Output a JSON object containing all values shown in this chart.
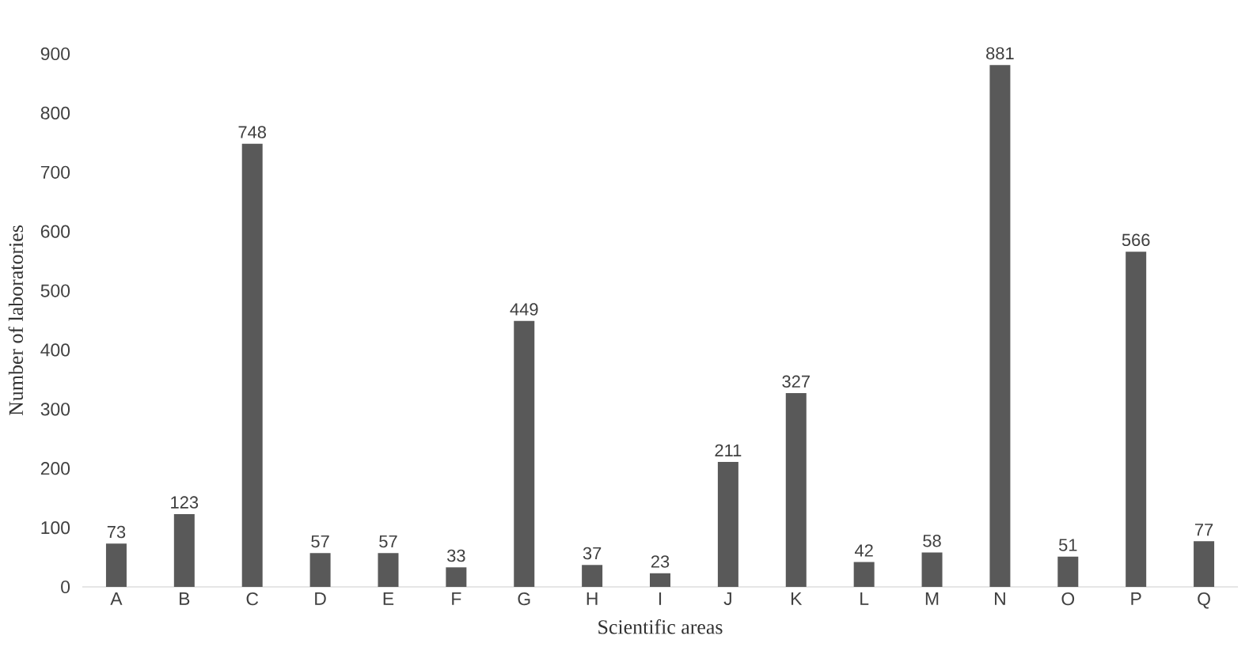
{
  "chart_data": {
    "type": "bar",
    "xlabel": "Scientific areas",
    "ylabel": "Number of laboratories",
    "categories": [
      "A",
      "B",
      "C",
      "D",
      "E",
      "F",
      "G",
      "H",
      "I",
      "J",
      "K",
      "L",
      "M",
      "N",
      "O",
      "P",
      "Q"
    ],
    "values": [
      73,
      123,
      748,
      57,
      57,
      33,
      449,
      37,
      23,
      211,
      327,
      42,
      58,
      881,
      51,
      566,
      77
    ],
    "color": "#595959",
    "ylim": [
      0,
      900
    ],
    "yticks": [
      0,
      100,
      200,
      300,
      400,
      500,
      600,
      700,
      800,
      900
    ],
    "data_labels": true
  }
}
